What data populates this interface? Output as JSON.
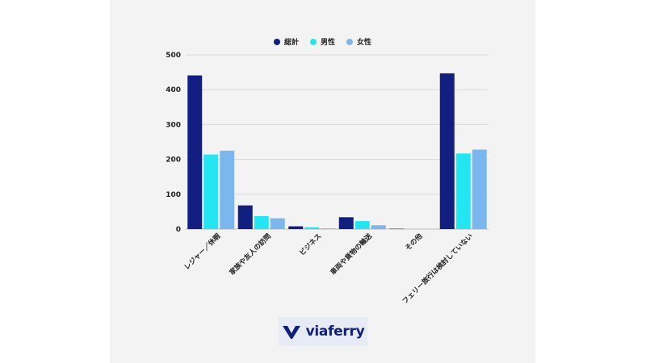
{
  "chart_data": {
    "type": "bar",
    "categories": [
      "レジャー／休暇",
      "家族や友人の訪問",
      "ビジネス",
      "車両や貨物の輸送",
      "その他",
      "フェリー旅行は検討していない"
    ],
    "series": [
      {
        "name": "総計",
        "color": "#121f80",
        "values": [
          441,
          68,
          8,
          34,
          1,
          447
        ]
      },
      {
        "name": "男性",
        "color": "#24e6f2",
        "values": [
          214,
          37,
          5,
          23,
          0,
          217
        ]
      },
      {
        "name": "女性",
        "color": "#7bb7ee",
        "values": [
          225,
          31,
          2,
          11,
          0,
          228
        ]
      }
    ],
    "ylim": [
      0,
      500
    ],
    "yticks": [
      0,
      100,
      200,
      300,
      400,
      500
    ],
    "grid": true,
    "legend_position": "top-center"
  },
  "logo": {
    "text": "viaferry",
    "icon": "viaferry-v-icon"
  }
}
